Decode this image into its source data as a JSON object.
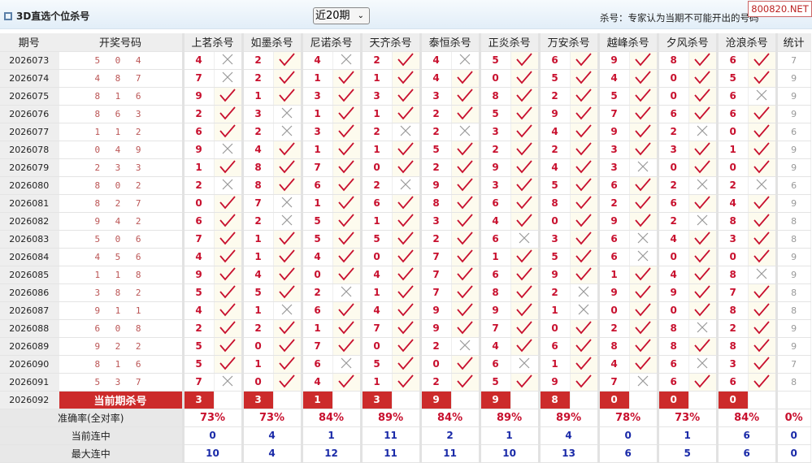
{
  "header": {
    "title": "3D直选个位杀号",
    "period_select": "近20期",
    "note": "杀号：专家认为当期不可能开出的号码",
    "watermark": "800820.NET"
  },
  "columns": {
    "period": "期号",
    "draw": "开奖号码",
    "experts": [
      "上茗杀号",
      "如墨杀号",
      "尼诺杀号",
      "天齐杀号",
      "泰恒杀号",
      "正炎杀号",
      "万安杀号",
      "越峰杀号",
      "夕风杀号",
      "沧浪杀号"
    ],
    "stat": "统计"
  },
  "rows": [
    {
      "period": "2026073",
      "draw": "5 0 4",
      "kills": [
        "4",
        "2",
        "4",
        "2",
        "4",
        "5",
        "6",
        "9",
        "8",
        "6"
      ],
      "hits": [
        0,
        1,
        0,
        1,
        0,
        1,
        1,
        1,
        1,
        1
      ],
      "stat": "7"
    },
    {
      "period": "2026074",
      "draw": "4 8 7",
      "kills": [
        "7",
        "2",
        "1",
        "1",
        "4",
        "0",
        "5",
        "4",
        "0",
        "5"
      ],
      "hits": [
        0,
        1,
        1,
        1,
        1,
        1,
        1,
        1,
        1,
        1
      ],
      "stat": "9"
    },
    {
      "period": "2026075",
      "draw": "8 1 6",
      "kills": [
        "9",
        "1",
        "3",
        "3",
        "3",
        "8",
        "2",
        "5",
        "0",
        "6"
      ],
      "hits": [
        1,
        1,
        1,
        1,
        1,
        1,
        1,
        1,
        1,
        0
      ],
      "stat": "9"
    },
    {
      "period": "2026076",
      "draw": "8 6 3",
      "kills": [
        "2",
        "3",
        "1",
        "1",
        "2",
        "5",
        "9",
        "7",
        "6",
        "6"
      ],
      "hits": [
        1,
        0,
        1,
        1,
        1,
        1,
        1,
        1,
        1,
        1
      ],
      "stat": "9"
    },
    {
      "period": "2026077",
      "draw": "1 1 2",
      "kills": [
        "6",
        "2",
        "3",
        "2",
        "2",
        "3",
        "4",
        "9",
        "2",
        "0"
      ],
      "hits": [
        1,
        0,
        1,
        0,
        0,
        1,
        1,
        1,
        0,
        1
      ],
      "stat": "6"
    },
    {
      "period": "2026078",
      "draw": "0 4 9",
      "kills": [
        "9",
        "4",
        "1",
        "1",
        "5",
        "2",
        "2",
        "3",
        "3",
        "1"
      ],
      "hits": [
        0,
        1,
        1,
        1,
        1,
        1,
        1,
        1,
        1,
        1
      ],
      "stat": "9"
    },
    {
      "period": "2026079",
      "draw": "2 3 3",
      "kills": [
        "1",
        "8",
        "7",
        "0",
        "2",
        "9",
        "4",
        "3",
        "0",
        "0"
      ],
      "hits": [
        1,
        1,
        1,
        1,
        1,
        1,
        1,
        0,
        1,
        1
      ],
      "stat": "9"
    },
    {
      "period": "2026080",
      "draw": "8 0 2",
      "kills": [
        "2",
        "8",
        "6",
        "2",
        "9",
        "3",
        "5",
        "6",
        "2",
        "2"
      ],
      "hits": [
        0,
        1,
        1,
        0,
        1,
        1,
        1,
        1,
        0,
        0
      ],
      "stat": "6"
    },
    {
      "period": "2026081",
      "draw": "8 2 7",
      "kills": [
        "0",
        "7",
        "1",
        "6",
        "8",
        "6",
        "8",
        "2",
        "6",
        "4"
      ],
      "hits": [
        1,
        0,
        1,
        1,
        1,
        1,
        1,
        1,
        1,
        1
      ],
      "stat": "9"
    },
    {
      "period": "2026082",
      "draw": "9 4 2",
      "kills": [
        "6",
        "2",
        "5",
        "1",
        "3",
        "4",
        "0",
        "9",
        "2",
        "8"
      ],
      "hits": [
        1,
        0,
        1,
        1,
        1,
        1,
        1,
        1,
        0,
        1
      ],
      "stat": "8"
    },
    {
      "period": "2026083",
      "draw": "5 0 6",
      "kills": [
        "7",
        "1",
        "5",
        "5",
        "2",
        "6",
        "3",
        "6",
        "4",
        "3"
      ],
      "hits": [
        1,
        1,
        1,
        1,
        1,
        0,
        1,
        0,
        1,
        1
      ],
      "stat": "8"
    },
    {
      "period": "2026084",
      "draw": "4 5 6",
      "kills": [
        "4",
        "1",
        "4",
        "0",
        "7",
        "1",
        "5",
        "6",
        "0",
        "0"
      ],
      "hits": [
        1,
        1,
        1,
        1,
        1,
        1,
        1,
        0,
        1,
        1
      ],
      "stat": "9"
    },
    {
      "period": "2026085",
      "draw": "1 1 8",
      "kills": [
        "9",
        "4",
        "0",
        "4",
        "7",
        "6",
        "9",
        "1",
        "4",
        "8"
      ],
      "hits": [
        1,
        1,
        1,
        1,
        1,
        1,
        1,
        1,
        1,
        0
      ],
      "stat": "9"
    },
    {
      "period": "2026086",
      "draw": "3 8 2",
      "kills": [
        "5",
        "5",
        "2",
        "1",
        "7",
        "8",
        "2",
        "9",
        "9",
        "7"
      ],
      "hits": [
        1,
        1,
        0,
        1,
        1,
        1,
        0,
        1,
        1,
        1
      ],
      "stat": "8"
    },
    {
      "period": "2026087",
      "draw": "9 1 1",
      "kills": [
        "4",
        "1",
        "6",
        "4",
        "9",
        "9",
        "1",
        "0",
        "0",
        "8"
      ],
      "hits": [
        1,
        0,
        1,
        1,
        1,
        1,
        0,
        1,
        1,
        1
      ],
      "stat": "8"
    },
    {
      "period": "2026088",
      "draw": "6 0 8",
      "kills": [
        "2",
        "2",
        "1",
        "7",
        "9",
        "7",
        "0",
        "2",
        "8",
        "2"
      ],
      "hits": [
        1,
        1,
        1,
        1,
        1,
        1,
        1,
        1,
        0,
        1
      ],
      "stat": "9"
    },
    {
      "period": "2026089",
      "draw": "9 2 2",
      "kills": [
        "5",
        "0",
        "7",
        "0",
        "2",
        "4",
        "6",
        "8",
        "8",
        "8"
      ],
      "hits": [
        1,
        1,
        1,
        1,
        0,
        1,
        1,
        1,
        1,
        1
      ],
      "stat": "9"
    },
    {
      "period": "2026090",
      "draw": "8 1 6",
      "kills": [
        "5",
        "1",
        "6",
        "5",
        "0",
        "6",
        "1",
        "4",
        "6",
        "3"
      ],
      "hits": [
        1,
        1,
        0,
        1,
        1,
        0,
        1,
        1,
        0,
        1
      ],
      "stat": "7"
    },
    {
      "period": "2026091",
      "draw": "5 3 7",
      "kills": [
        "7",
        "0",
        "4",
        "1",
        "2",
        "5",
        "9",
        "7",
        "6",
        "6"
      ],
      "hits": [
        0,
        1,
        1,
        1,
        1,
        1,
        1,
        0,
        1,
        1
      ],
      "stat": "8"
    }
  ],
  "current": {
    "period": "2026092",
    "label": "当前期杀号",
    "kills": [
      "3",
      "3",
      "1",
      "3",
      "9",
      "9",
      "8",
      "0",
      "0",
      "0"
    ]
  },
  "summary": {
    "accuracy_label": "准确率(全对率)",
    "accuracy": [
      "73%",
      "73%",
      "84%",
      "89%",
      "84%",
      "89%",
      "89%",
      "78%",
      "73%",
      "84%"
    ],
    "accuracy_stat": "0%",
    "streak_label": "当前连中",
    "streak": [
      "0",
      "4",
      "1",
      "11",
      "2",
      "1",
      "4",
      "0",
      "1",
      "6"
    ],
    "streak_stat": "0",
    "max_label": "最大连中",
    "max": [
      "10",
      "4",
      "12",
      "11",
      "11",
      "10",
      "13",
      "6",
      "5",
      "6"
    ],
    "max_stat": "0"
  },
  "colors": {
    "accent": "#cc2b2b",
    "hit": "#c8102e",
    "miss": "#999999",
    "blue": "#1a2aa8"
  }
}
